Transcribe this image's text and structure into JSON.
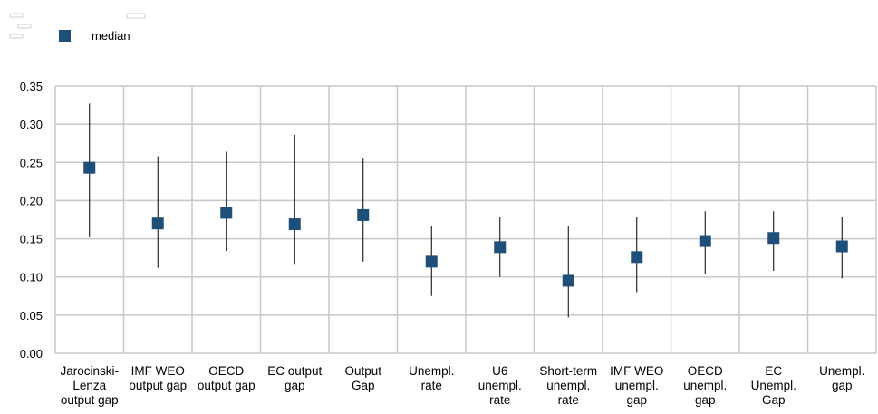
{
  "chart_data": {
    "type": "scatter",
    "legend": {
      "placement": "top-left",
      "label": "median",
      "color": "#1f4e79"
    },
    "categories": [
      [
        "Jarocinski-",
        "Lenza",
        "output gap"
      ],
      [
        "IMF WEO",
        "output gap"
      ],
      [
        "OECD",
        "output gap"
      ],
      [
        "EC output",
        "gap"
      ],
      [
        "Output",
        "Gap"
      ],
      [
        "Unempl.",
        "rate"
      ],
      [
        "U6",
        "unempl.",
        "rate"
      ],
      [
        "Short-term",
        "unempl.",
        "rate"
      ],
      [
        "IMF WEO",
        "unempl.",
        "gap"
      ],
      [
        "OECD",
        "unempl.",
        "gap"
      ],
      [
        "EC",
        "Unempl.",
        "Gap"
      ],
      [
        "Unempl.",
        "gap"
      ]
    ],
    "series": [
      {
        "name": "median",
        "values": [
          0.243,
          0.17,
          0.184,
          0.169,
          0.181,
          0.12,
          0.139,
          0.095,
          0.126,
          0.147,
          0.151,
          0.14
        ]
      }
    ],
    "range_low": [
      0.152,
      0.112,
      0.134,
      0.117,
      0.12,
      0.075,
      0.1,
      0.047,
      0.08,
      0.104,
      0.108,
      0.098
    ],
    "range_high": [
      0.327,
      0.258,
      0.264,
      0.286,
      0.256,
      0.167,
      0.179,
      0.167,
      0.179,
      0.186,
      0.186,
      0.179
    ],
    "ylim": [
      0,
      0.35
    ],
    "yticks": [
      "0.00",
      "0.05",
      "0.10",
      "0.15",
      "0.20",
      "0.25",
      "0.30",
      "0.35"
    ],
    "grid": true,
    "colors": {
      "marker": "#1f4e79",
      "grid": "#c8c8c8",
      "whisker": "#000000"
    }
  }
}
